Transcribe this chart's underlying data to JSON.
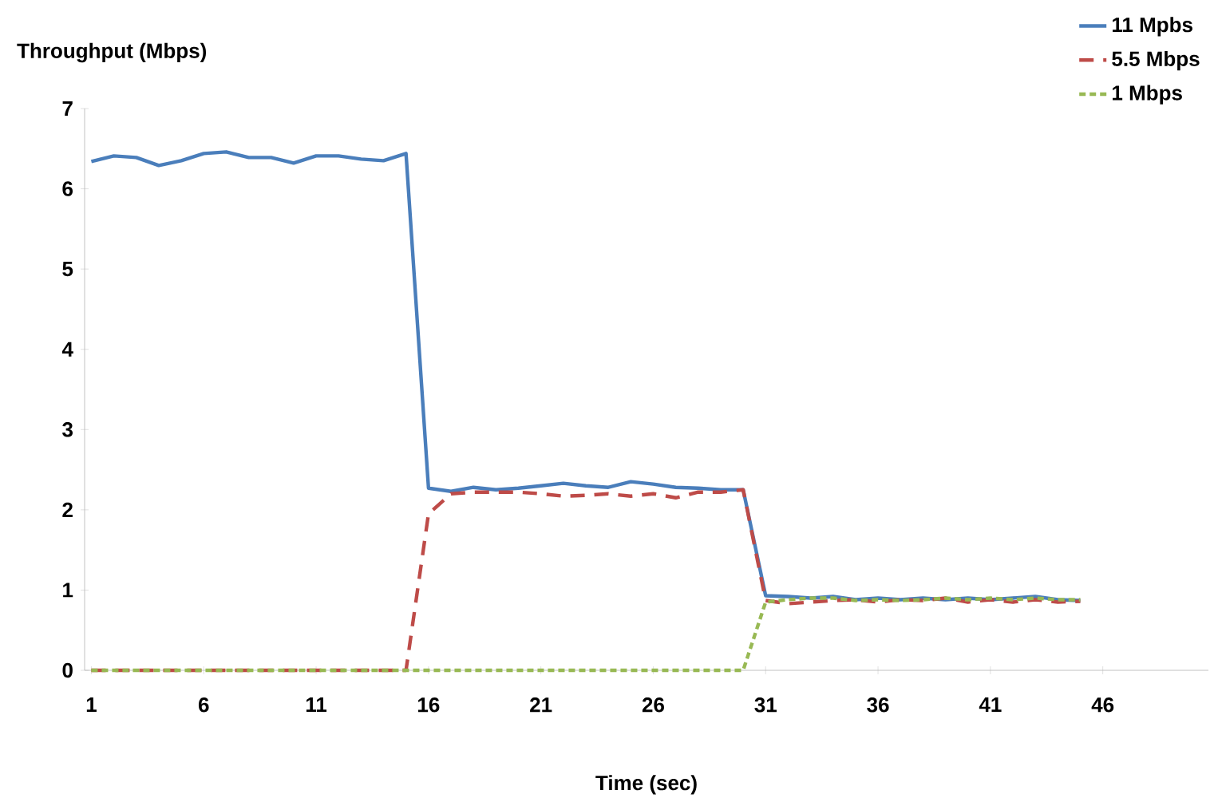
{
  "chart_data": {
    "type": "line",
    "xlabel": "Time (sec)",
    "ylabel": "Throughput (Mbps)",
    "xlim": [
      0.7,
      50.7
    ],
    "xticks": [
      1,
      6,
      11,
      16,
      21,
      26,
      31,
      36,
      41,
      46
    ],
    "ylim": [
      0,
      7
    ],
    "yticks": [
      0,
      1,
      2,
      3,
      4,
      5,
      6,
      7
    ],
    "grid": false,
    "legend": "top right",
    "marker": "none",
    "x": [
      1,
      2,
      3,
      4,
      5,
      6,
      7,
      8,
      9,
      10,
      11,
      12,
      13,
      14,
      15,
      16,
      17,
      18,
      19,
      20,
      21,
      22,
      23,
      24,
      25,
      26,
      27,
      28,
      29,
      30,
      31,
      32,
      33,
      34,
      35,
      36,
      37,
      38,
      39,
      40,
      41,
      42,
      43,
      44,
      45
    ],
    "series": [
      {
        "name": "11 Mpbs",
        "color": "#4a7ebb",
        "line_style": "solid",
        "values": [
          6.34,
          6.41,
          6.39,
          6.29,
          6.35,
          6.44,
          6.46,
          6.39,
          6.39,
          6.32,
          6.41,
          6.41,
          6.37,
          6.35,
          6.44,
          2.27,
          2.23,
          2.28,
          2.25,
          2.27,
          2.3,
          2.33,
          2.3,
          2.28,
          2.35,
          2.32,
          2.28,
          2.27,
          2.25,
          2.25,
          0.93,
          0.92,
          0.9,
          0.92,
          0.88,
          0.9,
          0.88,
          0.9,
          0.88,
          0.9,
          0.88,
          0.9,
          0.92,
          0.88,
          0.87
        ]
      },
      {
        "name": "5.5 Mbps",
        "color": "#be4b48",
        "line_style": "dashed",
        "values": [
          0,
          0,
          0,
          0,
          0,
          0,
          0,
          0,
          0,
          0,
          0,
          0,
          0,
          0,
          0,
          1.95,
          2.2,
          2.22,
          2.22,
          2.22,
          2.2,
          2.17,
          2.18,
          2.2,
          2.17,
          2.2,
          2.15,
          2.22,
          2.22,
          2.25,
          0.87,
          0.83,
          0.85,
          0.87,
          0.88,
          0.85,
          0.88,
          0.87,
          0.9,
          0.85,
          0.88,
          0.85,
          0.88,
          0.85,
          0.86
        ]
      },
      {
        "name": "1 Mbps",
        "color": "#98b954",
        "line_style": "dotted",
        "values": [
          0,
          0,
          0,
          0,
          0,
          0,
          0,
          0,
          0,
          0,
          0,
          0,
          0,
          0,
          0,
          0,
          0,
          0,
          0,
          0,
          0,
          0,
          0,
          0,
          0,
          0,
          0,
          0,
          0,
          0,
          0.85,
          0.88,
          0.9,
          0.9,
          0.87,
          0.88,
          0.87,
          0.88,
          0.9,
          0.88,
          0.9,
          0.88,
          0.9,
          0.88,
          0.88
        ]
      }
    ]
  }
}
